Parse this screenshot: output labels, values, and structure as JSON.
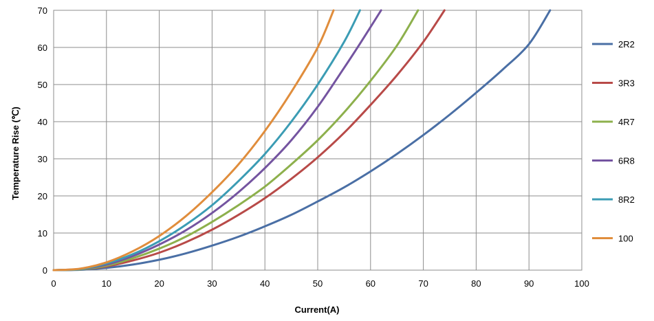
{
  "chart_data": {
    "type": "line",
    "xlabel": "Current(A)",
    "ylabel": "Temperature Rise (℃)",
    "xlim": [
      0,
      100
    ],
    "ylim": [
      0,
      70
    ],
    "xticks": [
      0,
      10,
      20,
      30,
      40,
      50,
      60,
      70,
      80,
      90,
      100
    ],
    "yticks": [
      0,
      10,
      20,
      30,
      40,
      50,
      60,
      70
    ],
    "grid": true,
    "legend_position": "right",
    "series": [
      {
        "name": "2R2",
        "color": "#4A6FA5",
        "x": [
          0,
          5,
          10,
          15,
          20,
          25,
          30,
          35,
          40,
          45,
          50,
          55,
          60,
          65,
          70,
          75,
          80,
          85,
          90,
          94
        ],
        "y": [
          0,
          0.1,
          0.6,
          1.5,
          2.8,
          4.5,
          6.6,
          9.0,
          11.8,
          14.9,
          18.5,
          22.3,
          26.6,
          31.3,
          36.4,
          41.9,
          47.8,
          54.0,
          60.9,
          70.0
        ]
      },
      {
        "name": "3R3",
        "color": "#B84A48",
        "x": [
          0,
          5,
          10,
          15,
          20,
          25,
          30,
          35,
          40,
          45,
          50,
          55,
          60,
          65,
          70,
          74
        ],
        "y": [
          0,
          0.2,
          1.0,
          2.6,
          4.7,
          7.5,
          10.9,
          14.9,
          19.4,
          24.6,
          30.4,
          37.0,
          44.5,
          52.5,
          61.5,
          70.0
        ]
      },
      {
        "name": "4R7",
        "color": "#8DB04C",
        "x": [
          0,
          5,
          10,
          15,
          20,
          25,
          30,
          35,
          40,
          45,
          50,
          55,
          60,
          65,
          69
        ],
        "y": [
          0,
          0.2,
          1.2,
          3.2,
          5.8,
          9.0,
          13.0,
          17.5,
          22.5,
          28.5,
          35.0,
          42.5,
          51.0,
          60.5,
          70.0
        ]
      },
      {
        "name": "6R8",
        "color": "#7454A0",
        "x": [
          0,
          5,
          10,
          15,
          20,
          25,
          30,
          35,
          40,
          45,
          50,
          55,
          58,
          62
        ],
        "y": [
          0,
          0.3,
          1.5,
          3.8,
          6.9,
          10.7,
          15.4,
          21.0,
          27.5,
          35.0,
          44.0,
          54.5,
          61.0,
          70.0
        ]
      },
      {
        "name": "8R2",
        "color": "#3B9CB4",
        "x": [
          0,
          5,
          10,
          15,
          20,
          25,
          30,
          35,
          40,
          45,
          50,
          55,
          58
        ],
        "y": [
          0,
          0.3,
          1.8,
          4.3,
          7.8,
          12.2,
          17.5,
          24.0,
          31.3,
          40.0,
          50.0,
          61.5,
          70.0
        ]
      },
      {
        "name": "100",
        "color": "#E08D3C",
        "x": [
          0,
          5,
          10,
          15,
          20,
          25,
          30,
          35,
          40,
          45,
          50,
          53
        ],
        "y": [
          0,
          0.4,
          2.1,
          5.1,
          9.2,
          14.5,
          21.0,
          28.5,
          37.5,
          48.0,
          60.0,
          70.0
        ]
      }
    ]
  }
}
